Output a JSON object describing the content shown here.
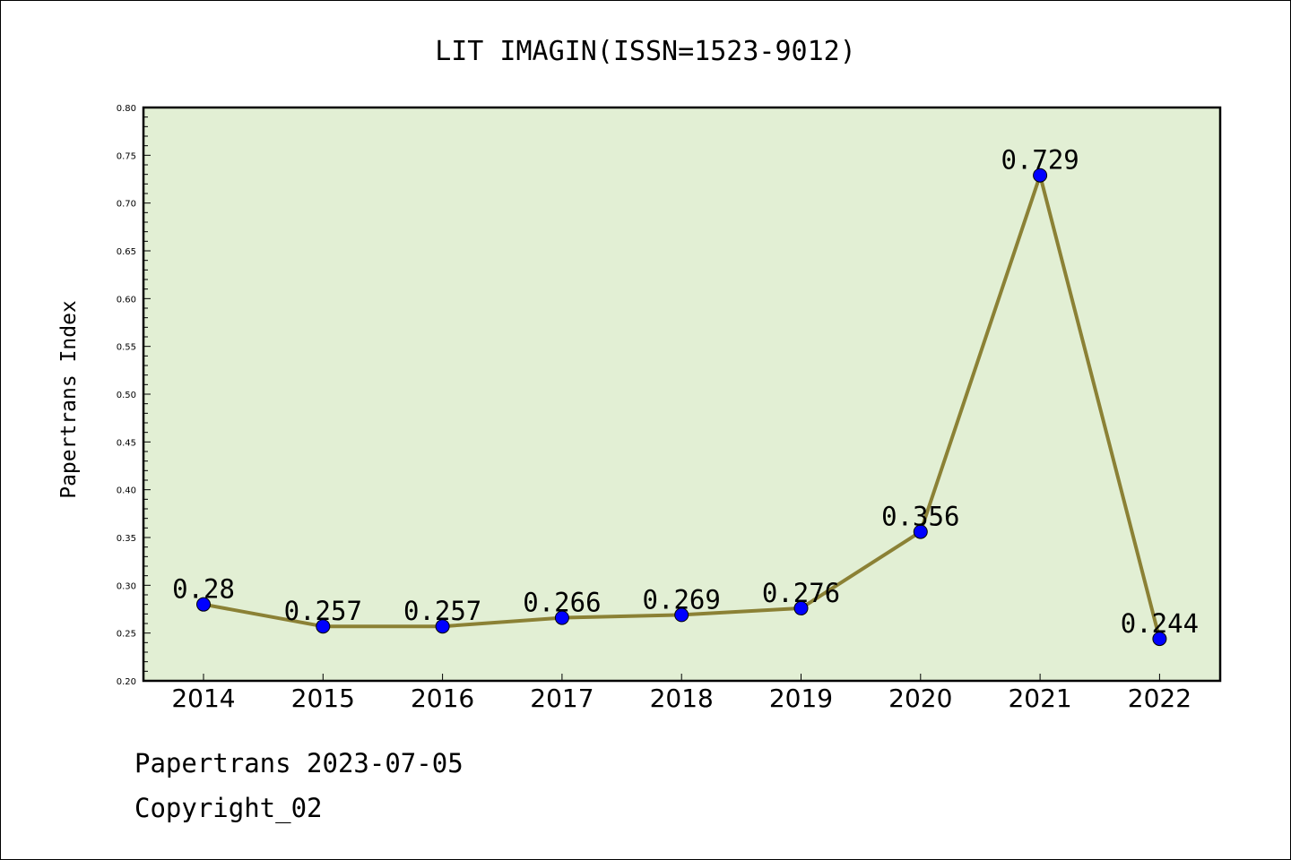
{
  "footer": {
    "line1": "Papertrans 2023-07-05",
    "line2": "Copyright_02"
  },
  "chart_data": {
    "type": "line",
    "title": "LIT IMAGIN(ISSN=1523-9012)",
    "xlabel": "",
    "ylabel": "Papertrans Index",
    "categories": [
      "2014",
      "2015",
      "2016",
      "2017",
      "2018",
      "2019",
      "2020",
      "2021",
      "2022"
    ],
    "series": [
      {
        "values": [
          0.28,
          0.257,
          0.257,
          0.266,
          0.269,
          0.276,
          0.356,
          0.729,
          0.244
        ],
        "labels": [
          "0.28",
          "0.257",
          "0.257",
          "0.266",
          "0.269",
          "0.276",
          "0.356",
          "0.729",
          "0.244"
        ]
      }
    ],
    "ylim": [
      0.2,
      0.8
    ],
    "yticks": [
      "0.20",
      "0.25",
      "0.30",
      "0.35",
      "0.40",
      "0.45",
      "0.50",
      "0.55",
      "0.60",
      "0.65",
      "0.70",
      "0.75",
      "0.80"
    ],
    "grid": false,
    "legend": "none",
    "colors": {
      "plot_background": "#e2efd4",
      "line": "#8b8135",
      "marker": "#0000ff"
    }
  }
}
